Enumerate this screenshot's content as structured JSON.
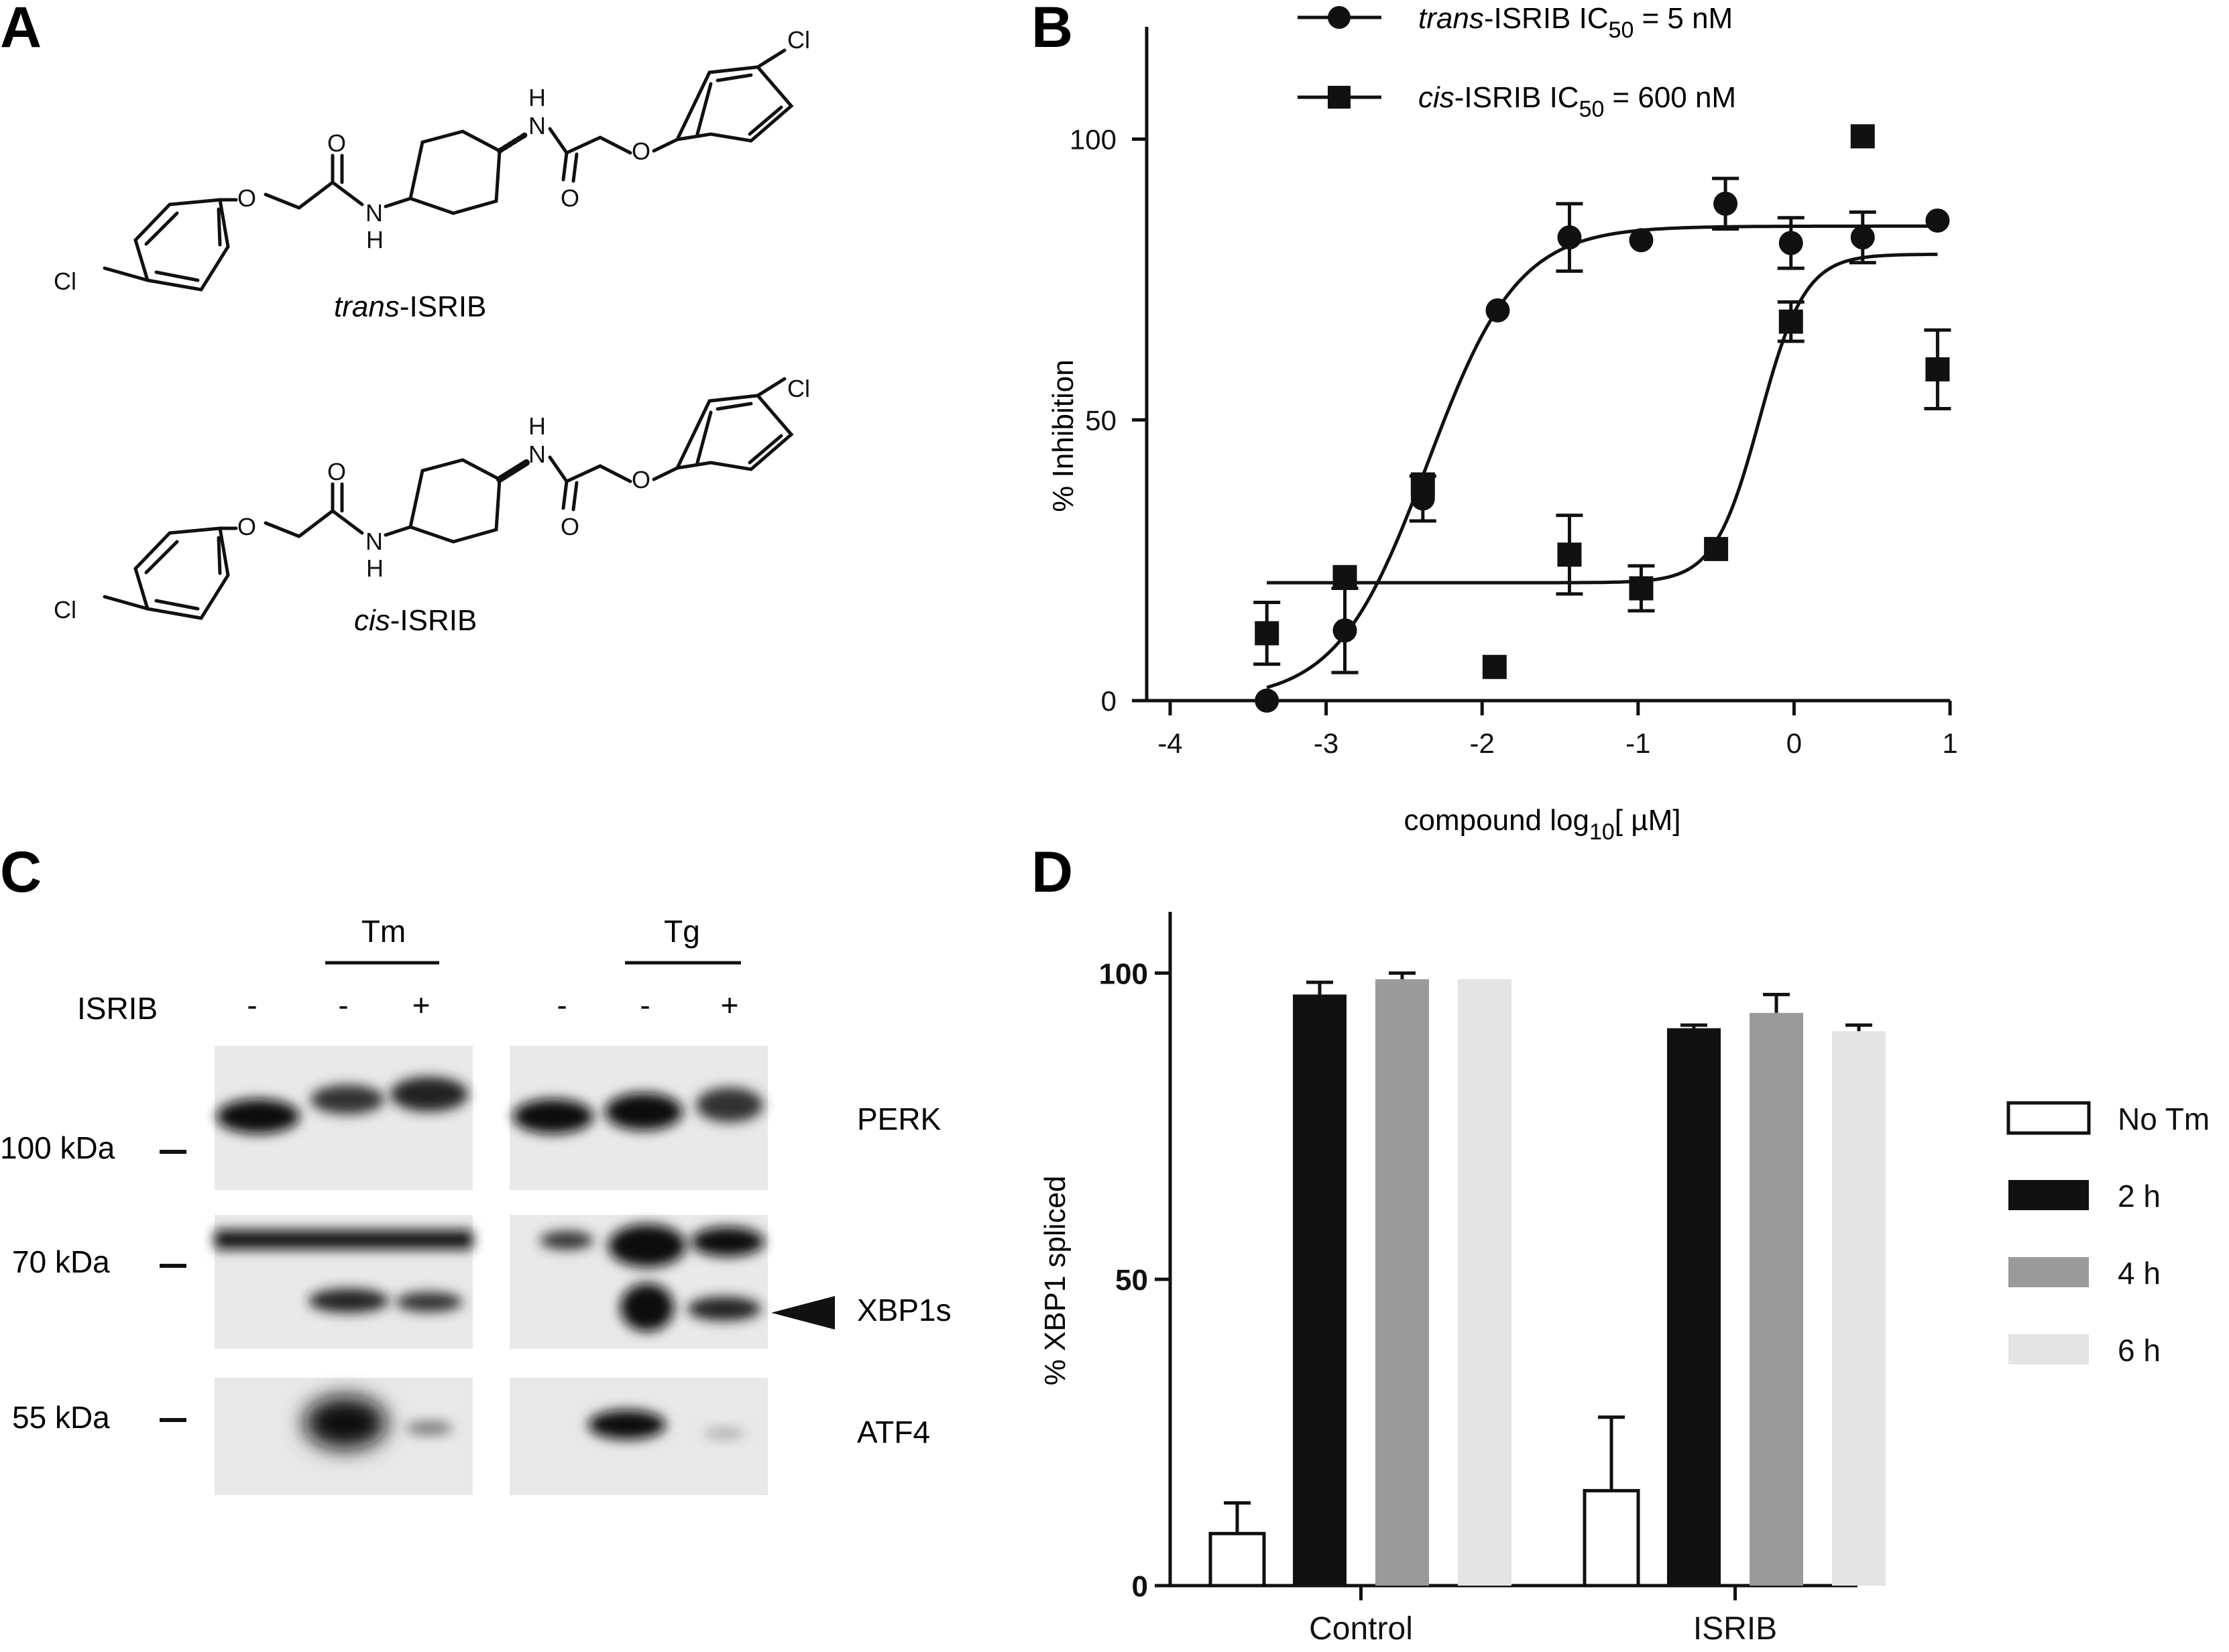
{
  "panels": {
    "A": {
      "label": "A",
      "trans_name_italic": "trans",
      "trans_name_rest": "-ISRIB",
      "cis_name_italic": "cis",
      "cis_name_rest": "-ISRIB",
      "atom_O": "O",
      "atom_N": "N",
      "atom_H": "H",
      "atom_Cl": "Cl"
    },
    "B": {
      "label": "B"
    },
    "C": {
      "label": "C"
    },
    "D": {
      "label": "D"
    }
  },
  "chart_data": [
    {
      "panel": "B",
      "type": "scatter",
      "xlabel_main": "compound log",
      "xlabel_sub": "10",
      "xlabel_unit": "[ µM]",
      "ylabel": "% Inhibition",
      "xlim": [
        -4,
        1
      ],
      "ylim": [
        0,
        120
      ],
      "xticks": [
        -4,
        -3,
        -2,
        -1,
        0,
        1
      ],
      "yticks": [
        0,
        50,
        100
      ],
      "legend_position": "top",
      "series": [
        {
          "name": "trans-ISRIB",
          "legend_italic": "trans",
          "legend_rest": "-ISRIB IC",
          "legend_sub": "50",
          "legend_value": "= 5 nM",
          "marker": "circle",
          "x": [
            -3.38,
            -2.88,
            -2.38,
            -1.9,
            -1.44,
            -0.98,
            -0.44,
            -0.02,
            0.44,
            0.92
          ],
          "y": [
            0,
            12.5,
            36,
            69.5,
            82.5,
            82,
            88.5,
            81.5,
            82.5,
            85.5
          ],
          "err": [
            0,
            7.5,
            4,
            0,
            6,
            0,
            4.5,
            4.5,
            4.5,
            0
          ],
          "fit": {
            "bottom": 0,
            "top": 84.5,
            "logIC50": -2.35,
            "hill": 1.5
          }
        },
        {
          "name": "cis-ISRIB",
          "legend_italic": "cis",
          "legend_rest": "-ISRIB IC",
          "legend_sub": "50",
          "legend_value": "= 600 nM",
          "marker": "square",
          "x": [
            -3.38,
            -2.88,
            -2.38,
            -1.92,
            -1.44,
            -0.98,
            -0.5,
            -0.02,
            0.44,
            0.92
          ],
          "y": [
            12,
            22,
            38.5,
            6,
            26,
            20,
            27,
            67.5,
            100.5,
            59
          ],
          "err": [
            5.5,
            0,
            0,
            0,
            7,
            4,
            0,
            3.5,
            0,
            7
          ],
          "fit": {
            "bottom": 21,
            "top": 79.5,
            "logIC50": -0.22,
            "hill": 3
          }
        }
      ]
    },
    {
      "panel": "D",
      "type": "bar",
      "ylabel": "% XBP1 spliced",
      "ylim": [
        0,
        110
      ],
      "yticks": [
        0,
        50,
        100
      ],
      "categories": [
        "Control",
        "ISRIB"
      ],
      "legend_position": "right",
      "series": [
        {
          "name": "No Tm",
          "color": "#ffffff",
          "values": [
            8.5,
            15.5
          ],
          "err": [
            5,
            12
          ]
        },
        {
          "name": "2 h",
          "color": "#111111",
          "values": [
            96.5,
            91
          ],
          "err": [
            2,
            0.5
          ]
        },
        {
          "name": "4 h",
          "color": "#9a9a9a",
          "values": [
            99,
            93.5
          ],
          "err": [
            1,
            3
          ]
        },
        {
          "name": "6 h",
          "color": "#e4e4e4",
          "values": [
            99,
            90.5
          ],
          "err": [
            0,
            1
          ]
        }
      ]
    }
  ],
  "blot": {
    "group_tm": "Tm",
    "group_tg": "Tg",
    "isrib_label": "ISRIB",
    "lane_signs": [
      "-",
      "-",
      "+",
      "-",
      "-",
      "+"
    ],
    "markers": [
      "100 kDa",
      "70 kDa",
      "55 kDa"
    ],
    "bands": [
      "PERK",
      "XBP1s",
      "ATF4"
    ]
  }
}
